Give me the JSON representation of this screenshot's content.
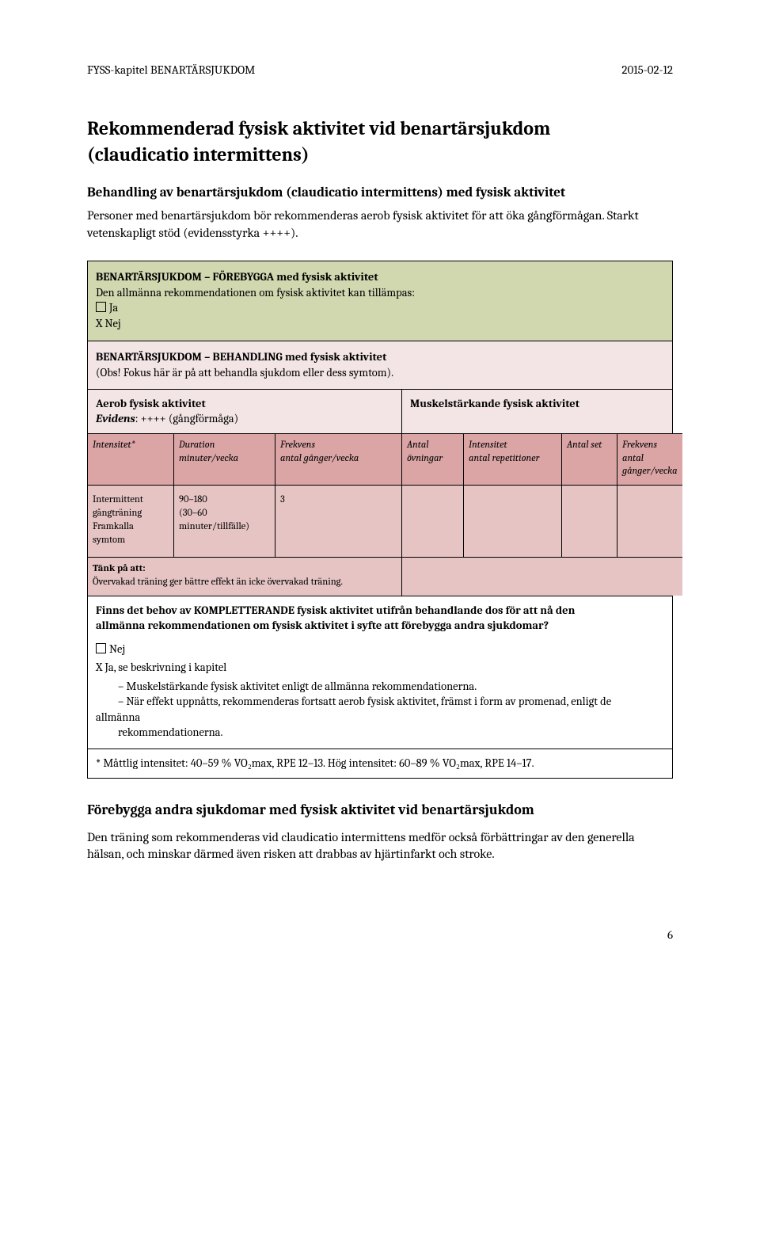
{
  "header": {
    "left": "FYSS-kapitel BENARTÄRSJUKDOM",
    "right": "2015-02-12"
  },
  "title_l1": "Rekommenderad fysisk aktivitet vid benartärsjukdom",
  "title_l2": "(claudicatio intermittens)",
  "sub1": "Behandling av benartärsjukdom (claudicatio intermittens) med fysisk aktivitet",
  "intro": "Personer med benartärsjukdom bör rekommenderas aerob fysisk aktivitet för att öka gångförmågan. Starkt vetenskapligt stöd (evidensstyrka ++++).",
  "green": {
    "heading": "BENARTÄRSJUKDOM – FÖREBYGGA med fysisk aktivitet",
    "line2": "Den allmänna rekommendationen om fysisk aktivitet kan tillämpas:",
    "opt1": "Ja",
    "opt2": "X   Nej"
  },
  "pink": {
    "heading": "BENARTÄRSJUKDOM – BEHANDLING med fysisk aktivitet",
    "note": "(Obs! Fokus här är på att behandla sjukdom eller dess symtom)."
  },
  "aerob": {
    "left_bold": "Aerob fysisk aktivitet",
    "left_ev_label": "Evidens",
    "left_ev_val": ": ++++ (gångförmåga)",
    "right": "Muskelstärkande fysisk aktivitet"
  },
  "cols": {
    "c0_l1": "Intensitet*",
    "c1_l1": "Duration",
    "c1_l2": "minuter/vecka",
    "c2_l1": "Frekvens",
    "c2_l2": "antal gånger/vecka",
    "c3_l1": "Antal",
    "c3_l2": "övningar",
    "c4_l1": "Intensitet",
    "c4_l2": "antal repetitioner",
    "c5_l1": "Antal set",
    "c6_l1": "Frekvens",
    "c6_l2": "antal gånger/vecka"
  },
  "row": {
    "c0_l1": "Intermittent",
    "c0_l2": "gångträning",
    "c0_l3": "Framkalla",
    "c0_l4": "symtom",
    "c1_l1": "90–180",
    "c1_l2": "(30–60",
    "c1_l3": "minuter/tillfälle)",
    "c2": "3"
  },
  "tank": {
    "label": "Tänk på att:",
    "text": "Övervakad träning ger bättre effekt än icke övervakad träning."
  },
  "bottom": {
    "q_l1": "Finns det behov av KOMPLETTERANDE fysisk aktivitet utifrån behandlande dos för att nå den",
    "q_l2": "allmänna rekommendationen om fysisk aktivitet i syfte att förebygga andra sjukdomar?",
    "nej": "Nej",
    "ja": "X  Ja, se beskrivning i kapitel",
    "b1": "– Muskelstärkande fysisk aktivitet enligt de allmänna rekommendationerna.",
    "b2": "– När effekt uppnåtts, rekommenderas fortsatt aerob fysisk aktivitet, främst i form av promenad, enligt de",
    "b2b": "allmänna",
    "b3": "rekommendationerna."
  },
  "footnote": "* Måttlig intensitet: 40–59 % VO₂max, RPE 12–13. Hög intensitet: 60–89 % VO₂max, RPE 14–17.",
  "sub2": "Förebygga andra sjukdomar med fysisk aktivitet vid benartärsjukdom",
  "closing": "Den träning som rekommenderas vid claudicatio intermittens medför också förbättringar av den generella hälsan, och minskar därmed även risken att drabbas av hjärtinfarkt och stroke.",
  "page": "6"
}
